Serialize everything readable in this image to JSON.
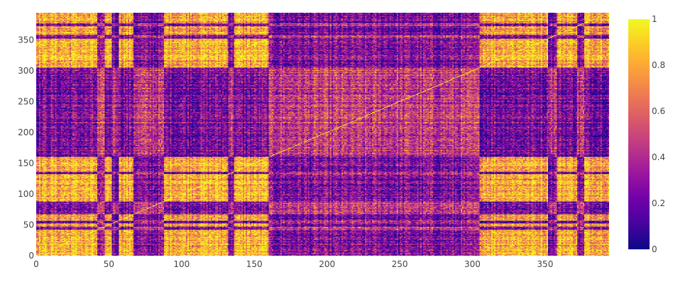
{
  "chart_data": {
    "type": "heatmap",
    "title": "",
    "xlabel": "",
    "ylabel": "",
    "n": 394,
    "xlim": [
      0,
      394
    ],
    "ylim": [
      0,
      394
    ],
    "x_ticks": [
      "0",
      "50",
      "100",
      "150",
      "200",
      "250",
      "300",
      "350"
    ],
    "y_ticks": [
      "0",
      "50",
      "100",
      "150",
      "200",
      "250",
      "300",
      "350"
    ],
    "x_tick_values": [
      0,
      50,
      100,
      150,
      200,
      250,
      300,
      350
    ],
    "y_tick_values": [
      0,
      50,
      100,
      150,
      200,
      250,
      300,
      350
    ],
    "colorscale": "plasma",
    "zlim": [
      0,
      1
    ],
    "colorbar_ticks": [
      "0",
      "0.2",
      "0.4",
      "0.6",
      "0.8",
      "1"
    ],
    "colorbar_tick_values": [
      0,
      0.2,
      0.4,
      0.6,
      0.8,
      1
    ],
    "grid": false,
    "diagonal_value": 1,
    "block_groups": {
      "A": [
        [
          0,
          42
        ],
        [
          47,
          52
        ],
        [
          57,
          67
        ],
        [
          88,
          105
        ],
        [
          105,
          132
        ],
        [
          136,
          160
        ],
        [
          305,
          352
        ],
        [
          358,
          372
        ],
        [
          377,
          394
        ]
      ],
      "B": [
        [
          42,
          47
        ],
        [
          52,
          57
        ],
        [
          67,
          88
        ],
        [
          132,
          136
        ],
        [
          160,
          305
        ],
        [
          352,
          358
        ],
        [
          372,
          377
        ]
      ]
    },
    "block_values": {
      "A_A": 0.82,
      "A_B": 0.25,
      "B_B": 0.45
    }
  }
}
